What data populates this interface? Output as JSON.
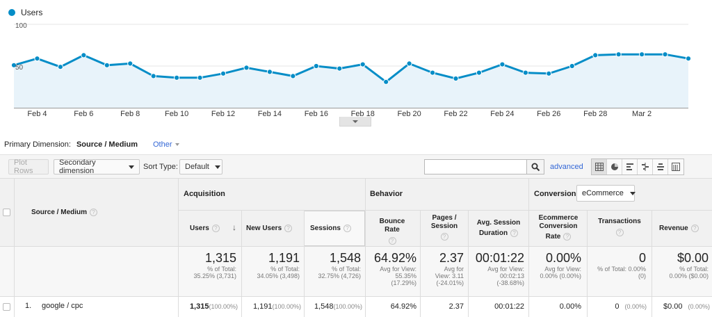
{
  "legend": {
    "label": "Users",
    "color": "#058dc7"
  },
  "chart_data": {
    "type": "line",
    "series": [
      {
        "name": "Users",
        "values": [
          51,
          59,
          49,
          63,
          51,
          53,
          38,
          36,
          36,
          41,
          48,
          43,
          38,
          50,
          47,
          52,
          31,
          53,
          42,
          35,
          42,
          52,
          42,
          41,
          50,
          63,
          64,
          64,
          64,
          59
        ]
      }
    ],
    "x_range": [
      "Feb 3",
      "Mar 4"
    ],
    "x_tick_labels": [
      "Feb 4",
      "Feb 6",
      "Feb 8",
      "Feb 10",
      "Feb 12",
      "Feb 14",
      "Feb 16",
      "Feb 18",
      "Feb 20",
      "Feb 22",
      "Feb 24",
      "Feb 26",
      "Feb 28",
      "Mar 2"
    ],
    "y_ticks": [
      "100",
      "50"
    ],
    "ylim": [
      0,
      100
    ],
    "grid": true
  },
  "primary_dimension": {
    "label": "Primary Dimension:",
    "current": "Source / Medium",
    "other": "Other"
  },
  "toolbar": {
    "plot_rows": "Plot Rows",
    "secondary_dimension": "Secondary dimension",
    "sort_type_label": "Sort Type:",
    "sort_type_value": "Default",
    "search_value": "",
    "advanced": "advanced",
    "view_icons": [
      "table-view-icon",
      "pie-view-icon",
      "performance-view-icon",
      "comparison-view-icon",
      "term-cloud-view-icon",
      "pivot-view-icon"
    ]
  },
  "table": {
    "dimension_header": "Source / Medium",
    "groups": {
      "acquisition": "Acquisition",
      "behavior": "Behavior",
      "conversions": "Conversions",
      "conversions_select": "eCommerce"
    },
    "columns": {
      "users": "Users",
      "new_users": "New Users",
      "sessions": "Sessions",
      "bounce_rate_1": "Bounce Rate",
      "pages_session_1": "Pages /",
      "pages_session_2": "Session",
      "avg_duration_1": "Avg. Session",
      "avg_duration_2": "Duration",
      "ecom_1": "Ecommerce",
      "ecom_2": "Conversion",
      "ecom_3": "Rate",
      "transactions": "Transactions",
      "revenue": "Revenue"
    },
    "totals": {
      "users": {
        "value": "1,315",
        "sub1": "% of Total:",
        "sub2": "35.25% (3,731)"
      },
      "new_users": {
        "value": "1,191",
        "sub1": "% of Total:",
        "sub2": "34.05% (3,498)"
      },
      "sessions": {
        "value": "1,548",
        "sub1": "% of Total:",
        "sub2": "32.75% (4,726)"
      },
      "bounce_rate": {
        "value": "64.92%",
        "sub1": "Avg for View:",
        "sub2": "55.35%",
        "sub3": "(17.29%)"
      },
      "pages_session": {
        "value": "2.37",
        "sub1": "Avg for",
        "sub2": "View: 3.11",
        "sub3": "(-24.01%)"
      },
      "avg_duration": {
        "value": "00:01:22",
        "sub1": "Avg for View:",
        "sub2": "00:02:13",
        "sub3": "(-38.68%)"
      },
      "ecom_rate": {
        "value": "0.00%",
        "sub1": "Avg for View:",
        "sub2": "0.00% (0.00%)"
      },
      "transactions": {
        "value": "0",
        "sub1": "% of Total: 0.00%",
        "sub2": "(0)"
      },
      "revenue": {
        "value": "$0.00",
        "sub1": "% of Total:",
        "sub2": "0.00% ($0.00)"
      }
    },
    "rows": [
      {
        "index": "1.",
        "source": "google / cpc",
        "users": "1,315",
        "users_pct": "(100.00%)",
        "new_users": "1,191",
        "new_users_pct": "(100.00%)",
        "sessions": "1,548",
        "sessions_pct": "(100.00%)",
        "bounce_rate": "64.92%",
        "pages_session": "2.37",
        "avg_duration": "00:01:22",
        "ecom_rate": "0.00%",
        "transactions": "0",
        "transactions_pct": "(0.00%)",
        "revenue": "$0.00",
        "revenue_pct": "(0.00%)"
      }
    ]
  }
}
